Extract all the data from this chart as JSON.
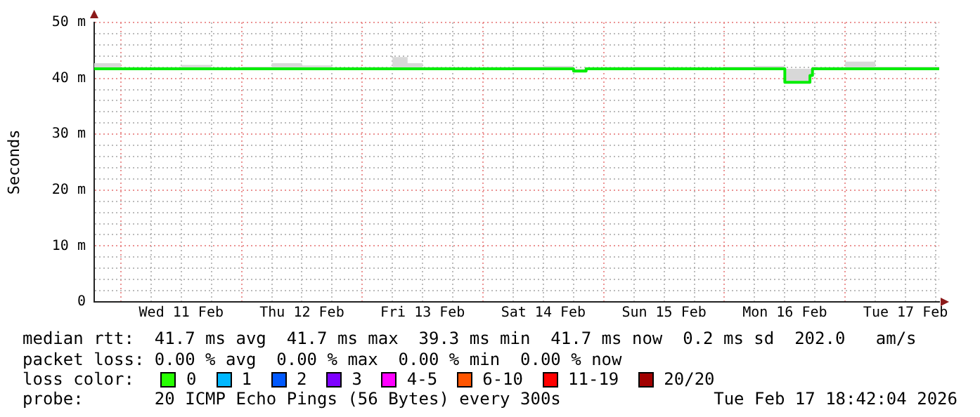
{
  "chart_data": {
    "type": "step",
    "ylabel": "Seconds",
    "xlim": [
      "2026-02-10T18:42",
      "2026-02-17T18:42"
    ],
    "xticks": [
      {
        "value": "2026-02-11T00:00",
        "label": null
      },
      {
        "value": "2026-02-11T06:00",
        "label": null
      },
      {
        "value": "2026-02-11T12:00",
        "label": "Wed 11 Feb"
      },
      {
        "value": "2026-02-11T18:00",
        "label": null
      },
      {
        "value": "2026-02-12T00:00",
        "label": null
      },
      {
        "value": "2026-02-12T06:00",
        "label": null
      },
      {
        "value": "2026-02-12T12:00",
        "label": "Thu 12 Feb"
      },
      {
        "value": "2026-02-12T18:00",
        "label": null
      },
      {
        "value": "2026-02-13T00:00",
        "label": null
      },
      {
        "value": "2026-02-13T06:00",
        "label": null
      },
      {
        "value": "2026-02-13T12:00",
        "label": "Fri 13 Feb"
      },
      {
        "value": "2026-02-13T18:00",
        "label": null
      },
      {
        "value": "2026-02-14T00:00",
        "label": null
      },
      {
        "value": "2026-02-14T06:00",
        "label": null
      },
      {
        "value": "2026-02-14T12:00",
        "label": "Sat 14 Feb"
      },
      {
        "value": "2026-02-14T18:00",
        "label": null
      },
      {
        "value": "2026-02-15T00:00",
        "label": null
      },
      {
        "value": "2026-02-15T06:00",
        "label": null
      },
      {
        "value": "2026-02-15T12:00",
        "label": "Sun 15 Feb"
      },
      {
        "value": "2026-02-15T18:00",
        "label": null
      },
      {
        "value": "2026-02-16T00:00",
        "label": null
      },
      {
        "value": "2026-02-16T06:00",
        "label": null
      },
      {
        "value": "2026-02-16T12:00",
        "label": "Mon 16 Feb"
      },
      {
        "value": "2026-02-16T18:00",
        "label": null
      },
      {
        "value": "2026-02-17T00:00",
        "label": null
      },
      {
        "value": "2026-02-17T06:00",
        "label": null
      },
      {
        "value": "2026-02-17T12:00",
        "label": "Tue 17 Feb"
      },
      {
        "value": "2026-02-17T18:00",
        "label": null
      }
    ],
    "ylim": [
      0,
      50
    ],
    "yticks": [
      0,
      {
        "value": 2,
        "label": null
      },
      {
        "value": 4,
        "label": null
      },
      {
        "value": 6,
        "label": null
      },
      {
        "value": 8,
        "label": null
      },
      {
        "value": 10,
        "label": "10 m"
      },
      {
        "value": 12,
        "label": null
      },
      {
        "value": 14,
        "label": null
      },
      {
        "value": 16,
        "label": null
      },
      {
        "value": 18,
        "label": null
      },
      {
        "value": 20,
        "label": "20 m"
      },
      {
        "value": 22,
        "label": null
      },
      {
        "value": 24,
        "label": null
      },
      {
        "value": 26,
        "label": null
      },
      {
        "value": 28,
        "label": null
      },
      {
        "value": 30,
        "label": "30 m"
      },
      {
        "value": 32,
        "label": null
      },
      {
        "value": 34,
        "label": null
      },
      {
        "value": 36,
        "label": null
      },
      {
        "value": 38,
        "label": null
      },
      {
        "value": 40,
        "label": "40 m"
      },
      {
        "value": 42,
        "label": null
      },
      {
        "value": 44,
        "label": null
      },
      {
        "value": 46,
        "label": null
      },
      {
        "value": 48,
        "label": null
      },
      {
        "value": 50,
        "label": "50 m"
      }
    ],
    "grid": true,
    "marker": "none",
    "line_style": "solid",
    "series": [
      {
        "color": "#00ee00",
        "x": [
          "2026-02-10T18:42",
          "2026-02-11T00:00",
          "2026-02-11T06:00",
          "2026-02-11T12:00",
          "2026-02-11T18:00",
          "2026-02-12T00:00",
          "2026-02-12T06:00",
          "2026-02-12T12:00",
          "2026-02-12T18:00",
          "2026-02-13T00:00",
          "2026-02-13T06:00",
          "2026-02-13T09:00",
          "2026-02-13T12:00",
          "2026-02-13T18:00",
          "2026-02-14T00:00",
          "2026-02-14T06:00",
          "2026-02-14T12:00",
          "2026-02-14T18:00",
          "2026-02-14T20:30",
          "2026-02-14T21:00",
          "2026-02-15T00:00",
          "2026-02-15T06:00",
          "2026-02-15T12:00",
          "2026-02-15T18:00",
          "2026-02-16T00:00",
          "2026-02-16T06:00",
          "2026-02-16T12:00",
          "2026-02-16T17:00",
          "2026-02-16T17:30",
          "2026-02-16T18:30",
          "2026-02-17T00:00",
          "2026-02-17T06:00",
          "2026-02-17T12:00",
          "2026-02-17T18:42"
        ],
        "values": [
          41.7,
          41.7,
          41.7,
          41.7,
          41.7,
          41.7,
          41.7,
          41.7,
          41.7,
          41.7,
          41.7,
          41.7,
          41.7,
          41.7,
          41.7,
          41.7,
          41.7,
          41.7,
          41.3,
          41.7,
          41.7,
          41.7,
          41.7,
          41.7,
          41.7,
          41.7,
          41.7,
          39.3,
          40.5,
          41.7,
          41.7,
          41.7,
          41.7,
          41.7
        ],
        "lower": [
          41.5,
          41.5,
          41.5,
          41.5,
          41.5,
          41.5,
          41.5,
          41.5,
          41.5,
          41.5,
          41.5,
          41.5,
          41.5,
          41.5,
          41.5,
          41.5,
          41.5,
          41.5,
          41.2,
          41.5,
          41.5,
          41.5,
          41.5,
          41.5,
          41.5,
          41.5,
          41.5,
          39.3,
          40.4,
          41.5,
          41.5,
          41.5,
          41.5,
          41.5
        ],
        "upper": [
          42.2,
          42.7,
          41.9,
          42.0,
          42.4,
          41.9,
          42.1,
          42.7,
          42.3,
          41.9,
          42.0,
          43.8,
          42.7,
          42.0,
          41.9,
          42.0,
          42.1,
          42.2,
          41.7,
          41.9,
          41.9,
          42.0,
          42.1,
          42.0,
          41.9,
          42.1,
          42.2,
          41.7,
          41.7,
          42.1,
          42.0,
          43.0,
          42.1,
          42.1
        ]
      }
    ],
    "annotations": [
      "median rtt:  41.7 ms avg  41.7 ms max  39.3 ms min  41.7 ms now  0.2 ms sd  202.0   am/s",
      "packet loss: 0.00 % avg  0.00 % max  0.00 % min  0.00 % now",
      "loss color:",
      "0",
      "1",
      "2",
      "3",
      "4-5",
      "6-10",
      "11-19",
      "20/20",
      "probe:       20 ICMP Echo Pings (56 Bytes) every 300s",
      "Tue Feb 17 18:42:04 2026"
    ]
  }
}
